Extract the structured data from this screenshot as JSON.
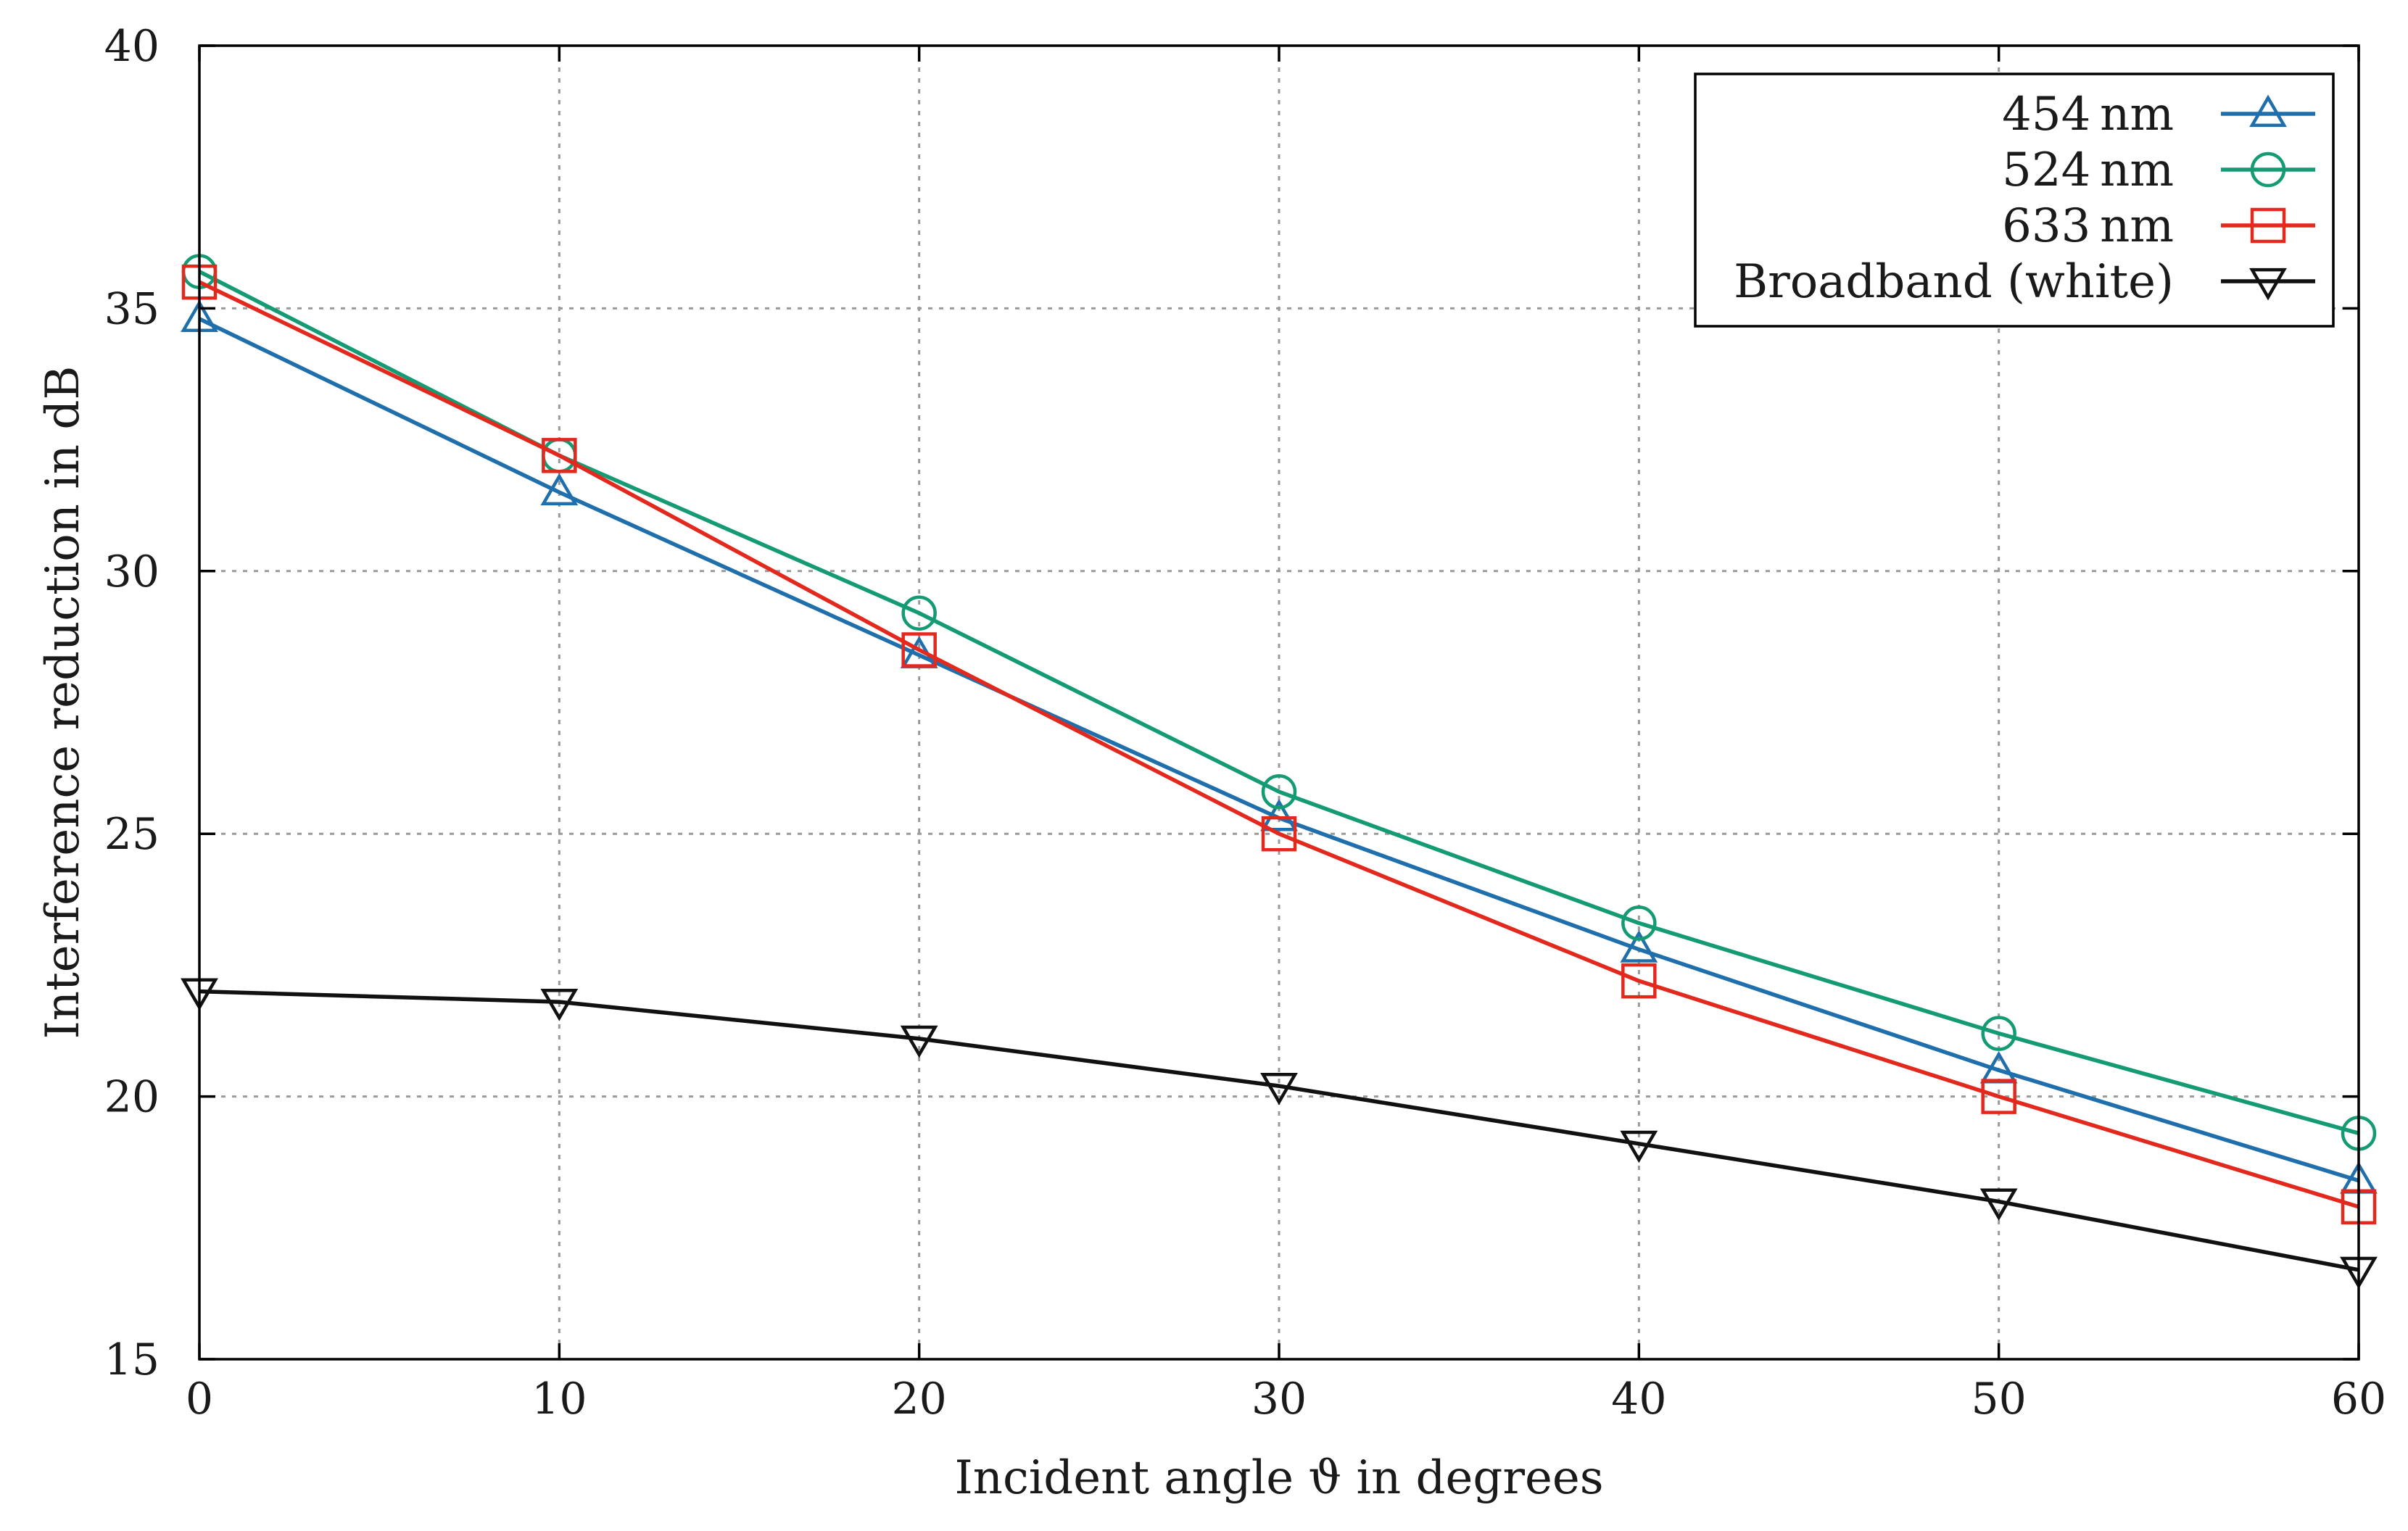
{
  "chart_data": {
    "type": "line",
    "title": "",
    "xlabel": "Incident angle ϑ in degrees",
    "ylabel": "Interference reduction in dB",
    "xlim": [
      0,
      60
    ],
    "ylim": [
      15,
      40
    ],
    "xticks": [
      0,
      10,
      20,
      30,
      40,
      50,
      60
    ],
    "yticks": [
      15,
      20,
      25,
      30,
      35,
      40
    ],
    "grid": true,
    "legend_position": "top-right",
    "x": [
      0,
      10,
      20,
      30,
      40,
      50,
      60
    ],
    "series": [
      {
        "name": "454 nm",
        "marker": "triangle-up",
        "color": "#1f6fad",
        "values": [
          34.8,
          31.5,
          28.4,
          25.3,
          22.8,
          20.5,
          18.4
        ]
      },
      {
        "name": "524 nm",
        "marker": "circle",
        "color": "#149b73",
        "values": [
          35.7,
          32.2,
          29.2,
          25.8,
          23.3,
          21.2,
          19.3
        ]
      },
      {
        "name": "633 nm",
        "marker": "square",
        "color": "#e3281d",
        "values": [
          35.5,
          32.2,
          28.5,
          25.0,
          22.2,
          20.0,
          17.9
        ]
      },
      {
        "name": "Broadband (white)",
        "marker": "triangle-down",
        "color": "#111111",
        "values": [
          22.0,
          21.8,
          21.1,
          20.2,
          19.1,
          18.0,
          16.7
        ]
      }
    ]
  }
}
